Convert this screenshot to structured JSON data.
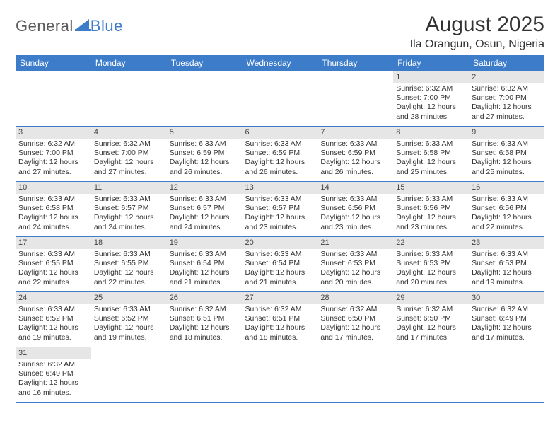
{
  "logo": {
    "text1": "General",
    "text2": "Blue"
  },
  "title": "August 2025",
  "location": "Ila Orangun, Osun, Nigeria",
  "colors": {
    "accent": "#3d7cc9",
    "daynum_bg": "#e6e6e6",
    "text": "#333333",
    "bg": "#ffffff"
  },
  "daynames": [
    "Sunday",
    "Monday",
    "Tuesday",
    "Wednesday",
    "Thursday",
    "Friday",
    "Saturday"
  ],
  "weeks": [
    [
      null,
      null,
      null,
      null,
      null,
      {
        "n": "1",
        "sr": "6:32 AM",
        "ss": "7:00 PM",
        "dl": "12 hours and 28 minutes."
      },
      {
        "n": "2",
        "sr": "6:32 AM",
        "ss": "7:00 PM",
        "dl": "12 hours and 27 minutes."
      }
    ],
    [
      {
        "n": "3",
        "sr": "6:32 AM",
        "ss": "7:00 PM",
        "dl": "12 hours and 27 minutes."
      },
      {
        "n": "4",
        "sr": "6:32 AM",
        "ss": "7:00 PM",
        "dl": "12 hours and 27 minutes."
      },
      {
        "n": "5",
        "sr": "6:33 AM",
        "ss": "6:59 PM",
        "dl": "12 hours and 26 minutes."
      },
      {
        "n": "6",
        "sr": "6:33 AM",
        "ss": "6:59 PM",
        "dl": "12 hours and 26 minutes."
      },
      {
        "n": "7",
        "sr": "6:33 AM",
        "ss": "6:59 PM",
        "dl": "12 hours and 26 minutes."
      },
      {
        "n": "8",
        "sr": "6:33 AM",
        "ss": "6:58 PM",
        "dl": "12 hours and 25 minutes."
      },
      {
        "n": "9",
        "sr": "6:33 AM",
        "ss": "6:58 PM",
        "dl": "12 hours and 25 minutes."
      }
    ],
    [
      {
        "n": "10",
        "sr": "6:33 AM",
        "ss": "6:58 PM",
        "dl": "12 hours and 24 minutes."
      },
      {
        "n": "11",
        "sr": "6:33 AM",
        "ss": "6:57 PM",
        "dl": "12 hours and 24 minutes."
      },
      {
        "n": "12",
        "sr": "6:33 AM",
        "ss": "6:57 PM",
        "dl": "12 hours and 24 minutes."
      },
      {
        "n": "13",
        "sr": "6:33 AM",
        "ss": "6:57 PM",
        "dl": "12 hours and 23 minutes."
      },
      {
        "n": "14",
        "sr": "6:33 AM",
        "ss": "6:56 PM",
        "dl": "12 hours and 23 minutes."
      },
      {
        "n": "15",
        "sr": "6:33 AM",
        "ss": "6:56 PM",
        "dl": "12 hours and 23 minutes."
      },
      {
        "n": "16",
        "sr": "6:33 AM",
        "ss": "6:56 PM",
        "dl": "12 hours and 22 minutes."
      }
    ],
    [
      {
        "n": "17",
        "sr": "6:33 AM",
        "ss": "6:55 PM",
        "dl": "12 hours and 22 minutes."
      },
      {
        "n": "18",
        "sr": "6:33 AM",
        "ss": "6:55 PM",
        "dl": "12 hours and 22 minutes."
      },
      {
        "n": "19",
        "sr": "6:33 AM",
        "ss": "6:54 PM",
        "dl": "12 hours and 21 minutes."
      },
      {
        "n": "20",
        "sr": "6:33 AM",
        "ss": "6:54 PM",
        "dl": "12 hours and 21 minutes."
      },
      {
        "n": "21",
        "sr": "6:33 AM",
        "ss": "6:53 PM",
        "dl": "12 hours and 20 minutes."
      },
      {
        "n": "22",
        "sr": "6:33 AM",
        "ss": "6:53 PM",
        "dl": "12 hours and 20 minutes."
      },
      {
        "n": "23",
        "sr": "6:33 AM",
        "ss": "6:53 PM",
        "dl": "12 hours and 19 minutes."
      }
    ],
    [
      {
        "n": "24",
        "sr": "6:33 AM",
        "ss": "6:52 PM",
        "dl": "12 hours and 19 minutes."
      },
      {
        "n": "25",
        "sr": "6:33 AM",
        "ss": "6:52 PM",
        "dl": "12 hours and 19 minutes."
      },
      {
        "n": "26",
        "sr": "6:32 AM",
        "ss": "6:51 PM",
        "dl": "12 hours and 18 minutes."
      },
      {
        "n": "27",
        "sr": "6:32 AM",
        "ss": "6:51 PM",
        "dl": "12 hours and 18 minutes."
      },
      {
        "n": "28",
        "sr": "6:32 AM",
        "ss": "6:50 PM",
        "dl": "12 hours and 17 minutes."
      },
      {
        "n": "29",
        "sr": "6:32 AM",
        "ss": "6:50 PM",
        "dl": "12 hours and 17 minutes."
      },
      {
        "n": "30",
        "sr": "6:32 AM",
        "ss": "6:49 PM",
        "dl": "12 hours and 17 minutes."
      }
    ],
    [
      {
        "n": "31",
        "sr": "6:32 AM",
        "ss": "6:49 PM",
        "dl": "12 hours and 16 minutes."
      },
      null,
      null,
      null,
      null,
      null,
      null
    ]
  ],
  "labels": {
    "sunrise": "Sunrise:",
    "sunset": "Sunset:",
    "daylight": "Daylight:"
  }
}
